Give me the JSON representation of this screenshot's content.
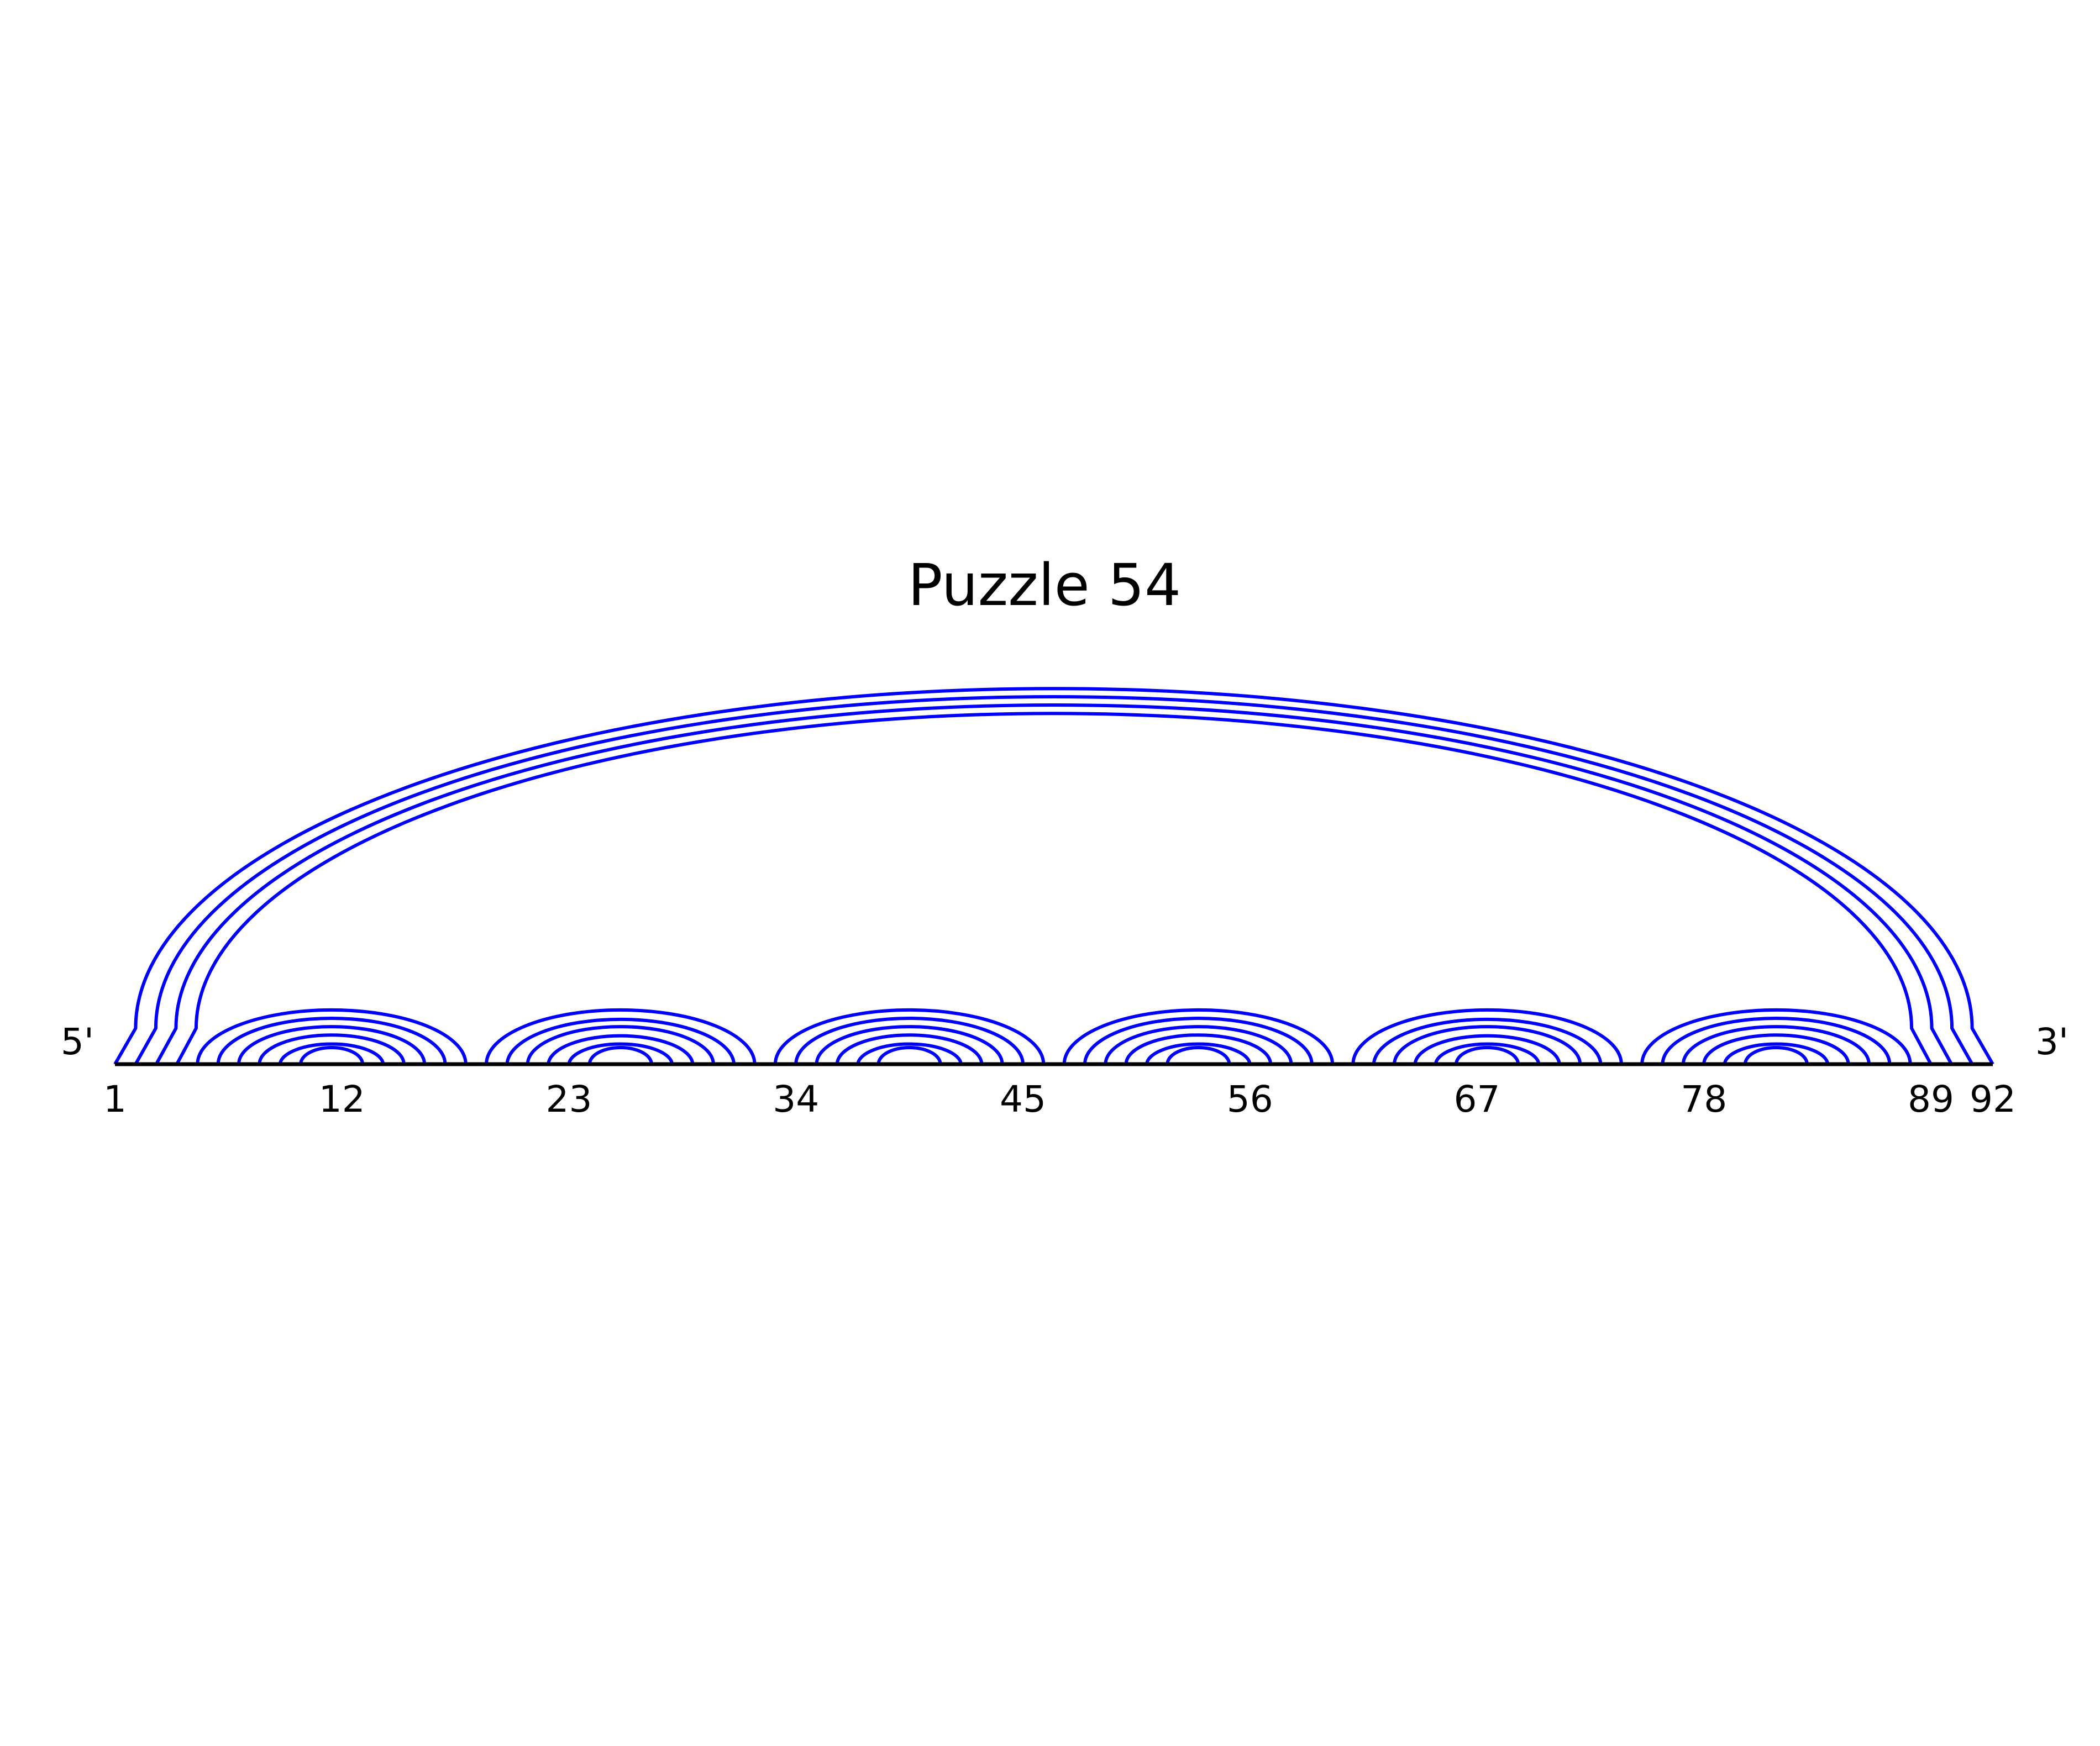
{
  "diagram": {
    "title": "Puzzle 54",
    "five_prime_label": "5'",
    "three_prime_label": "3'",
    "sequence_length": 92,
    "tick_labels": [
      "1",
      "12",
      "23",
      "34",
      "45",
      "56",
      "67",
      "78",
      "89",
      "92"
    ],
    "tick_positions": [
      1,
      12,
      23,
      34,
      45,
      56,
      67,
      78,
      89,
      92
    ],
    "arc_color": "#0000ff",
    "backbone_color": "#000000",
    "base_pairs": [
      [
        1,
        92
      ],
      [
        2,
        91
      ],
      [
        3,
        90
      ],
      [
        4,
        89
      ],
      [
        5,
        18
      ],
      [
        6,
        17
      ],
      [
        7,
        16
      ],
      [
        8,
        15
      ],
      [
        9,
        14
      ],
      [
        10,
        13
      ],
      [
        19,
        32
      ],
      [
        20,
        31
      ],
      [
        21,
        30
      ],
      [
        22,
        29
      ],
      [
        23,
        28
      ],
      [
        24,
        27
      ],
      [
        33,
        46
      ],
      [
        34,
        45
      ],
      [
        35,
        44
      ],
      [
        36,
        43
      ],
      [
        37,
        42
      ],
      [
        38,
        41
      ],
      [
        47,
        60
      ],
      [
        48,
        59
      ],
      [
        49,
        58
      ],
      [
        50,
        57
      ],
      [
        51,
        56
      ],
      [
        52,
        55
      ],
      [
        61,
        74
      ],
      [
        62,
        73
      ],
      [
        63,
        72
      ],
      [
        64,
        71
      ],
      [
        65,
        70
      ],
      [
        66,
        69
      ],
      [
        75,
        88
      ],
      [
        76,
        87
      ],
      [
        77,
        86
      ],
      [
        78,
        85
      ],
      [
        79,
        84
      ],
      [
        80,
        83
      ]
    ]
  }
}
